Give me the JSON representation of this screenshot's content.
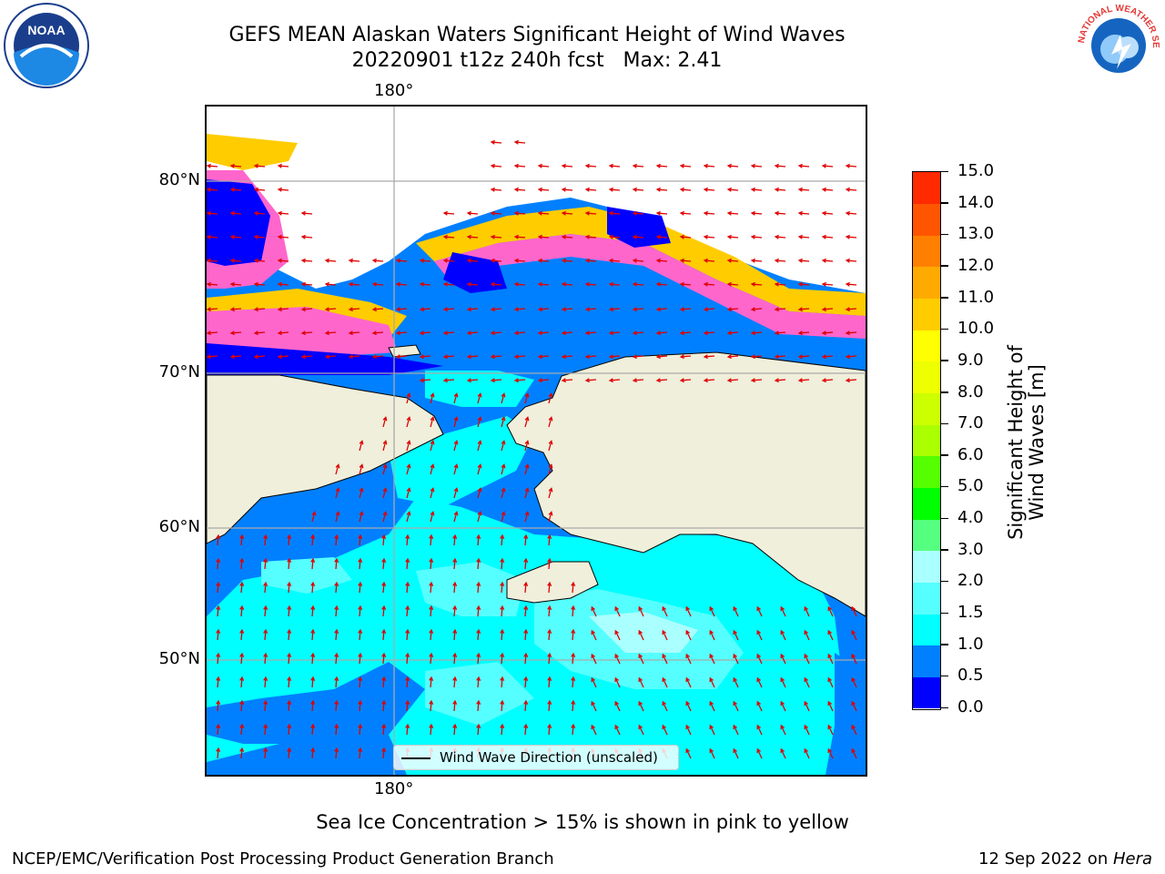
{
  "title": {
    "line1": "GEFS MEAN Alaskan Waters Significant Height of Wind Waves",
    "line2": "20220901 t12z 240h fcst   Max: 2.41"
  },
  "axes": {
    "lon_top": "180°",
    "lon_bottom": "180°",
    "lat_labels": [
      "80°N",
      "70°N",
      "60°N",
      "50°N"
    ]
  },
  "legend": {
    "label": "Wind Wave Direction (unscaled)"
  },
  "colorbar": {
    "label": "Significant Height of Wind Waves [m]",
    "ticks": [
      "0.0",
      "0.5",
      "1.0",
      "1.5",
      "2.0",
      "3.0",
      "4.0",
      "5.0",
      "6.0",
      "7.0",
      "8.0",
      "9.0",
      "10.0",
      "11.0",
      "12.0",
      "13.0",
      "14.0",
      "15.0"
    ],
    "colors": [
      "#0000ff",
      "#0080ff",
      "#00ffff",
      "#55ffff",
      "#aaffff",
      "#55ff80",
      "#00ff00",
      "#55ff00",
      "#aaff00",
      "#ccff00",
      "#eeff00",
      "#ffff00",
      "#ffcc00",
      "#ffaa00",
      "#ff8000",
      "#ff5500",
      "#ff2a00",
      "#ff0000"
    ]
  },
  "note": "Sea Ice Concentration > 15% is shown in pink to yellow",
  "footer": {
    "left": "NCEP/EMC/Verification Post Processing Product Generation Branch",
    "right_date": "12 Sep 2022 on ",
    "right_host": "Hera"
  },
  "logos": {
    "noaa": "NOAA",
    "nws": "NATIONAL WEATHER SERVICE"
  }
}
